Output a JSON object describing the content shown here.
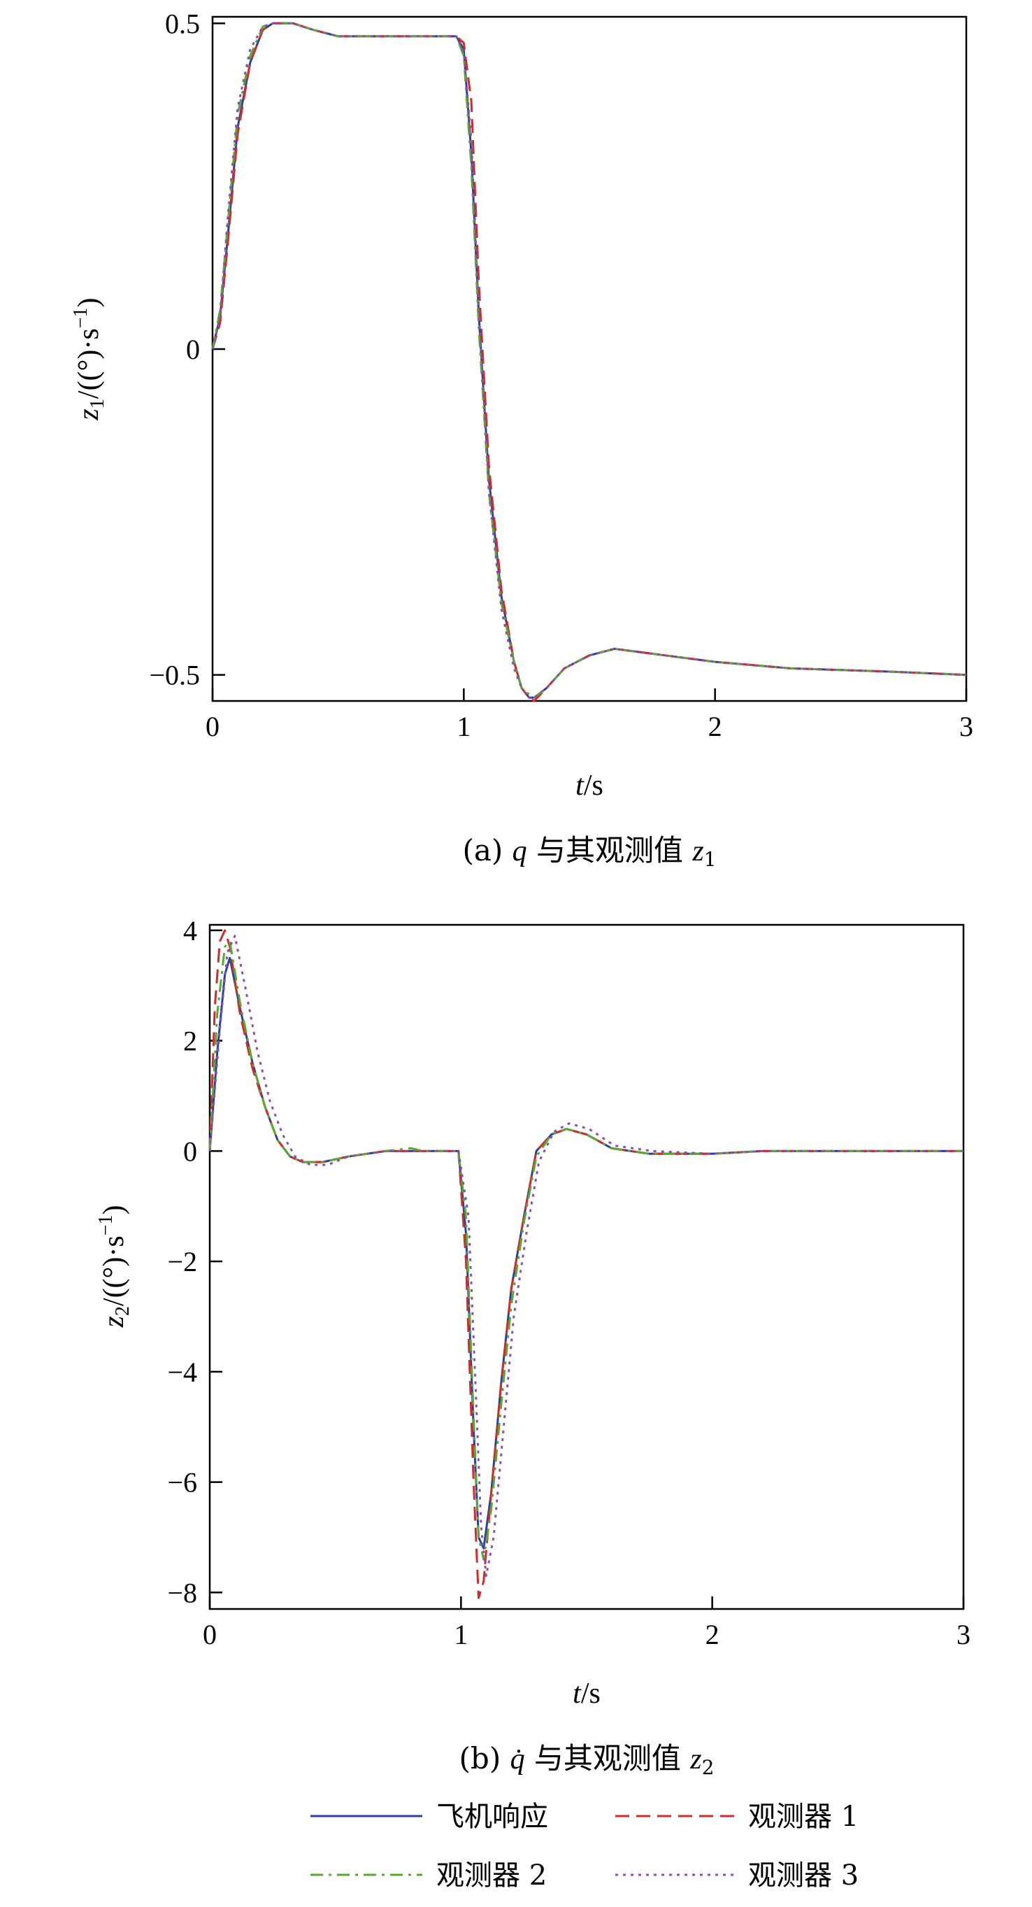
{
  "colors": {
    "aircraft": "#2b3f9e",
    "obs1": "#d42a2a",
    "obs2": "#5aa832",
    "obs3": "#8a4fb0"
  },
  "legend": {
    "items": [
      {
        "key": "aircraft",
        "label": "飞机响应",
        "dash": ""
      },
      {
        "key": "obs1",
        "label": "观测器 1",
        "dash": "20,10"
      },
      {
        "key": "obs2",
        "label": "观测器 2",
        "dash": "18,8,4,8"
      },
      {
        "key": "obs3",
        "label": "观测器 3",
        "dash": "4,7"
      }
    ]
  },
  "chart_data": [
    {
      "type": "line",
      "caption": {
        "prefix": "(a) ",
        "var": "q",
        "mid": " 与其观测值 ",
        "obs": "z",
        "sub": "1"
      },
      "xlabel": {
        "v": "t",
        "unit": "/s"
      },
      "ylabel": {
        "v": "z",
        "sub": "1",
        "unit": "/((°)·s",
        "sup": "−1",
        "close": ")"
      },
      "xlim": [
        0,
        3
      ],
      "ylim": [
        -0.54,
        0.51
      ],
      "xticks": [
        0,
        1,
        2,
        3
      ],
      "xtick_labels": [
        "0",
        "1",
        "2",
        "3"
      ],
      "yticks": [
        -0.5,
        0,
        0.5
      ],
      "ytick_labels": [
        "−0.5",
        "0",
        "0.5"
      ],
      "series": [
        {
          "key": "aircraft",
          "name": "飞机响应",
          "x": [
            0,
            0.03,
            0.06,
            0.1,
            0.15,
            0.2,
            0.24,
            0.27,
            0.32,
            0.4,
            0.5,
            0.6,
            0.8,
            0.93,
            0.97,
            1.0,
            1.03,
            1.06,
            1.1,
            1.15,
            1.2,
            1.23,
            1.26,
            1.28,
            1.33,
            1.4,
            1.5,
            1.6,
            1.7,
            1.8,
            2.0,
            2.3,
            2.7,
            3.0
          ],
          "y": [
            0,
            0.05,
            0.17,
            0.34,
            0.44,
            0.49,
            0.5,
            0.5,
            0.5,
            0.49,
            0.48,
            0.48,
            0.48,
            0.48,
            0.48,
            0.46,
            0.3,
            0.05,
            -0.2,
            -0.38,
            -0.48,
            -0.52,
            -0.535,
            -0.535,
            -0.52,
            -0.49,
            -0.47,
            -0.46,
            -0.465,
            -0.47,
            -0.48,
            -0.49,
            -0.495,
            -0.5
          ]
        },
        {
          "key": "obs1",
          "name": "观测器 1",
          "x": [
            0,
            0.03,
            0.06,
            0.1,
            0.15,
            0.2,
            0.24,
            0.27,
            0.32,
            0.4,
            0.5,
            0.6,
            0.8,
            0.93,
            0.97,
            1.0,
            1.03,
            1.06,
            1.1,
            1.15,
            1.2,
            1.23,
            1.26,
            1.28,
            1.33,
            1.4,
            1.5,
            1.6,
            1.7,
            1.8,
            2.0,
            2.3,
            2.7,
            3.0
          ],
          "y": [
            0,
            0.04,
            0.16,
            0.33,
            0.44,
            0.49,
            0.5,
            0.5,
            0.5,
            0.49,
            0.48,
            0.48,
            0.48,
            0.48,
            0.48,
            0.47,
            0.38,
            0.1,
            -0.18,
            -0.37,
            -0.48,
            -0.52,
            -0.535,
            -0.54,
            -0.52,
            -0.49,
            -0.47,
            -0.46,
            -0.465,
            -0.47,
            -0.48,
            -0.49,
            -0.495,
            -0.5
          ]
        },
        {
          "key": "obs2",
          "name": "观测器 2",
          "x": [
            0,
            0.03,
            0.06,
            0.1,
            0.15,
            0.2,
            0.24,
            0.27,
            0.32,
            0.4,
            0.5,
            0.6,
            0.8,
            0.93,
            0.97,
            1.0,
            1.03,
            1.06,
            1.1,
            1.15,
            1.2,
            1.23,
            1.26,
            1.28,
            1.33,
            1.4,
            1.5,
            1.6,
            1.7,
            1.8,
            2.0,
            2.3,
            2.7,
            3.0
          ],
          "y": [
            0,
            0.06,
            0.19,
            0.36,
            0.45,
            0.495,
            0.5,
            0.5,
            0.5,
            0.49,
            0.48,
            0.48,
            0.48,
            0.48,
            0.48,
            0.45,
            0.28,
            0.03,
            -0.22,
            -0.39,
            -0.48,
            -0.52,
            -0.53,
            -0.535,
            -0.52,
            -0.49,
            -0.47,
            -0.46,
            -0.465,
            -0.47,
            -0.48,
            -0.49,
            -0.495,
            -0.5
          ]
        },
        {
          "key": "obs3",
          "name": "观测器 3",
          "x": [
            0,
            0.03,
            0.06,
            0.1,
            0.15,
            0.2,
            0.24,
            0.27,
            0.32,
            0.4,
            0.5,
            0.6,
            0.8,
            0.93,
            0.97,
            1.0,
            1.03,
            1.06,
            1.1,
            1.15,
            1.2,
            1.23,
            1.26,
            1.28,
            1.33,
            1.4,
            1.5,
            1.6,
            1.7,
            1.8,
            2.0,
            2.3,
            2.7,
            3.0
          ],
          "y": [
            0,
            0.05,
            0.2,
            0.37,
            0.46,
            0.495,
            0.5,
            0.5,
            0.5,
            0.49,
            0.48,
            0.48,
            0.48,
            0.48,
            0.48,
            0.455,
            0.32,
            0.06,
            -0.22,
            -0.4,
            -0.49,
            -0.52,
            -0.535,
            -0.535,
            -0.52,
            -0.49,
            -0.47,
            -0.46,
            -0.465,
            -0.47,
            -0.48,
            -0.49,
            -0.495,
            -0.5
          ]
        }
      ]
    },
    {
      "type": "line",
      "caption": {
        "prefix": "(b) ",
        "var": "q̇",
        "mid": " 与其观测值 ",
        "obs": "z",
        "sub": "2"
      },
      "xlabel": {
        "v": "t",
        "unit": "/s"
      },
      "ylabel": {
        "v": "z",
        "sub": "2",
        "unit": "/((°)·s",
        "sup": "−1",
        "close": ")"
      },
      "xlim": [
        0,
        3
      ],
      "ylim": [
        -8.3,
        4.1
      ],
      "xticks": [
        0,
        1,
        2,
        3
      ],
      "xtick_labels": [
        "0",
        "1",
        "2",
        "3"
      ],
      "yticks": [
        -8,
        -6,
        -4,
        -2,
        0,
        2,
        4
      ],
      "ytick_labels": [
        "−8",
        "−6",
        "−4",
        "−2",
        "0",
        "2",
        "4"
      ],
      "series": [
        {
          "key": "aircraft",
          "name": "飞机响应",
          "x": [
            0,
            0.03,
            0.06,
            0.08,
            0.12,
            0.17,
            0.22,
            0.27,
            0.32,
            0.37,
            0.45,
            0.55,
            0.7,
            0.85,
            0.99,
            1.02,
            1.05,
            1.07,
            1.09,
            1.12,
            1.16,
            1.2,
            1.25,
            1.3,
            1.36,
            1.42,
            1.5,
            1.6,
            1.75,
            2.0,
            2.2,
            2.5,
            3.0
          ],
          "y": [
            0,
            1.8,
            3.2,
            3.5,
            2.6,
            1.6,
            0.8,
            0.2,
            -0.1,
            -0.2,
            -0.2,
            -0.1,
            0,
            0,
            0,
            -1.5,
            -5,
            -7,
            -7.2,
            -6.2,
            -4.2,
            -2.5,
            -1.2,
            0,
            0.3,
            0.4,
            0.3,
            0.05,
            -0.05,
            -0.05,
            0,
            0,
            0
          ]
        },
        {
          "key": "obs1",
          "name": "观测器 1",
          "x": [
            0,
            0.02,
            0.04,
            0.06,
            0.08,
            0.12,
            0.17,
            0.22,
            0.27,
            0.32,
            0.37,
            0.45,
            0.55,
            0.7,
            0.85,
            0.99,
            1.02,
            1.05,
            1.07,
            1.09,
            1.12,
            1.16,
            1.2,
            1.25,
            1.3,
            1.36,
            1.42,
            1.5,
            1.6,
            1.75,
            2.0,
            2.2,
            2.5,
            3.0
          ],
          "y": [
            0,
            2.6,
            3.8,
            4.0,
            3.7,
            2.5,
            1.5,
            0.8,
            0.2,
            -0.1,
            -0.2,
            -0.2,
            -0.1,
            0,
            0,
            0,
            -2,
            -6,
            -8.1,
            -7.8,
            -6.2,
            -4.2,
            -2.5,
            -1.2,
            0,
            0.3,
            0.4,
            0.3,
            0.05,
            -0.05,
            -0.05,
            0,
            0,
            0
          ]
        },
        {
          "key": "obs2",
          "name": "观测器 2",
          "x": [
            0,
            0.03,
            0.06,
            0.08,
            0.12,
            0.17,
            0.22,
            0.27,
            0.32,
            0.37,
            0.45,
            0.55,
            0.7,
            0.8,
            0.85,
            0.99,
            1.02,
            1.05,
            1.07,
            1.09,
            1.12,
            1.16,
            1.2,
            1.25,
            1.3,
            1.36,
            1.42,
            1.5,
            1.6,
            1.75,
            2.0,
            2.2,
            2.5,
            3.0
          ],
          "y": [
            0,
            2.5,
            3.7,
            3.8,
            2.7,
            1.6,
            0.8,
            0.2,
            -0.1,
            -0.2,
            -0.2,
            -0.1,
            0,
            0.05,
            0,
            0,
            -1.2,
            -4.8,
            -7,
            -7.4,
            -6.5,
            -4.6,
            -2.8,
            -1.3,
            -0.1,
            0.3,
            0.4,
            0.3,
            0.05,
            -0.05,
            -0.05,
            0,
            0,
            0
          ]
        },
        {
          "key": "obs3",
          "name": "观测器 3",
          "x": [
            0,
            0.04,
            0.07,
            0.1,
            0.14,
            0.19,
            0.24,
            0.29,
            0.34,
            0.4,
            0.47,
            0.55,
            0.7,
            0.85,
            0.99,
            1.03,
            1.06,
            1.08,
            1.1,
            1.13,
            1.17,
            1.21,
            1.26,
            1.31,
            1.37,
            1.43,
            1.51,
            1.61,
            1.76,
            2.0,
            2.2,
            2.5,
            3.0
          ],
          "y": [
            0,
            2.2,
            3.6,
            3.9,
            3.0,
            1.8,
            0.9,
            0.3,
            -0.1,
            -0.25,
            -0.25,
            -0.1,
            0,
            0,
            0,
            -1.2,
            -4.5,
            -6.8,
            -7.7,
            -7,
            -5,
            -3,
            -1.5,
            -0.2,
            0.35,
            0.5,
            0.4,
            0.1,
            0,
            -0.05,
            0,
            0,
            0
          ]
        }
      ]
    }
  ]
}
